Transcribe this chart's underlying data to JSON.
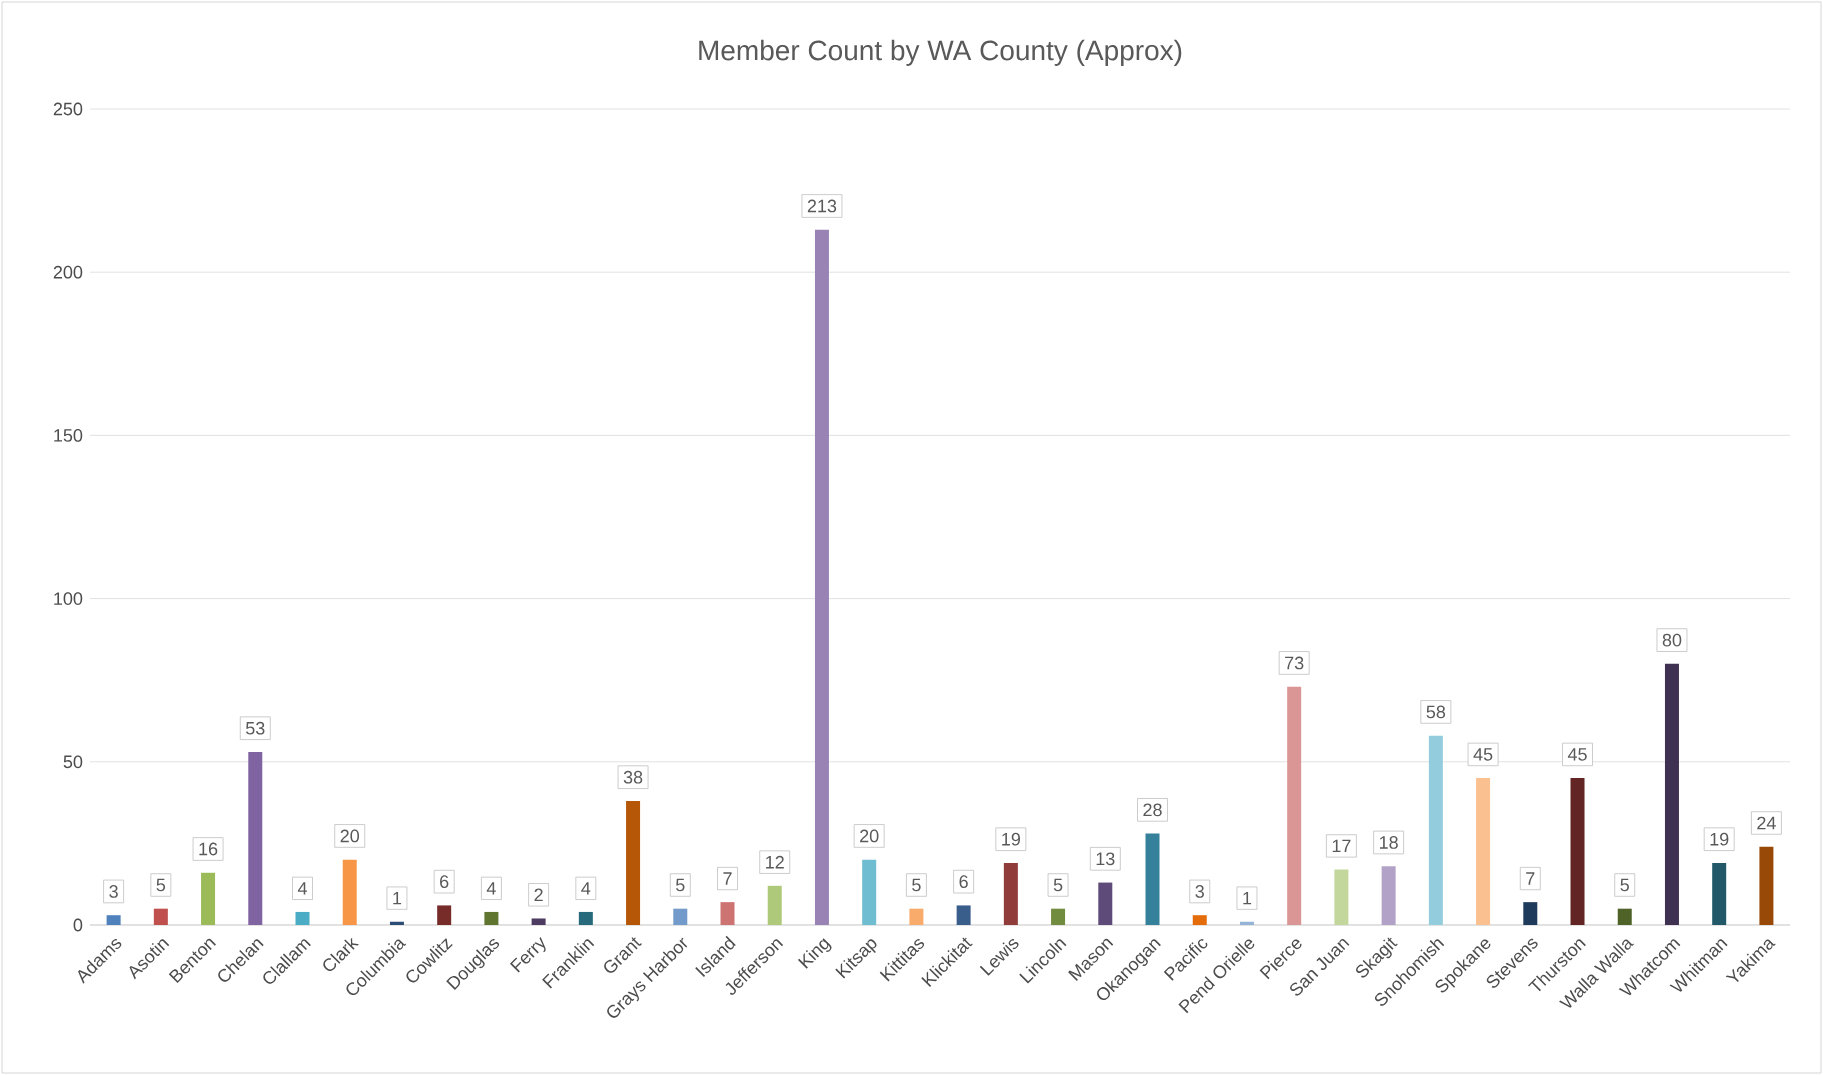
{
  "chart_data": {
    "type": "bar",
    "title": "Member Count by WA County (Approx)",
    "categories": [
      "Adams",
      "Asotin",
      "Benton",
      "Chelan",
      "Clallam",
      "Clark",
      "Columbia",
      "Cowlitz",
      "Douglas",
      "Ferry",
      "Franklin",
      "Grant",
      "Grays Harbor",
      "Island",
      "Jefferson",
      "King",
      "Kitsap",
      "Kittitas",
      "Klickitat",
      "Lewis",
      "Lincoln",
      "Mason",
      "Okanogan",
      "Pacific",
      "Pend Orielle",
      "Pierce",
      "San Juan",
      "Skagit",
      "Snohomish",
      "Spokane",
      "Stevens",
      "Thurston",
      "Walla Walla",
      "Whatcom",
      "Whitman",
      "Yakima"
    ],
    "values": [
      3,
      5,
      16,
      53,
      4,
      20,
      1,
      6,
      4,
      2,
      4,
      38,
      5,
      7,
      12,
      213,
      20,
      5,
      6,
      19,
      5,
      13,
      28,
      3,
      1,
      73,
      17,
      18,
      58,
      45,
      7,
      45,
      5,
      80,
      19,
      24
    ],
    "colors": [
      "#4f81bd",
      "#c0504d",
      "#9bbb59",
      "#8064a2",
      "#4bacc6",
      "#f79646",
      "#2c4d75",
      "#772c2a",
      "#5f7530",
      "#4d3b62",
      "#276a7c",
      "#b65708",
      "#729aca",
      "#cd7371",
      "#afc97a",
      "#9983b5",
      "#6fbdd1",
      "#f9ab6b",
      "#3a5e8c",
      "#8f3c3a",
      "#728c3f",
      "#5f4b7a",
      "#35809a",
      "#e46c0a",
      "#95b3d7",
      "#d99694",
      "#c3d69b",
      "#b3a2c7",
      "#93cddd",
      "#fac090",
      "#1f3b5b",
      "#632523",
      "#4f6228",
      "#3f3151",
      "#215968",
      "#984807"
    ],
    "ylim": [
      0,
      250
    ],
    "yticks": [
      0,
      50,
      100,
      150,
      200,
      250
    ],
    "grid": "y",
    "data_labels": true
  }
}
